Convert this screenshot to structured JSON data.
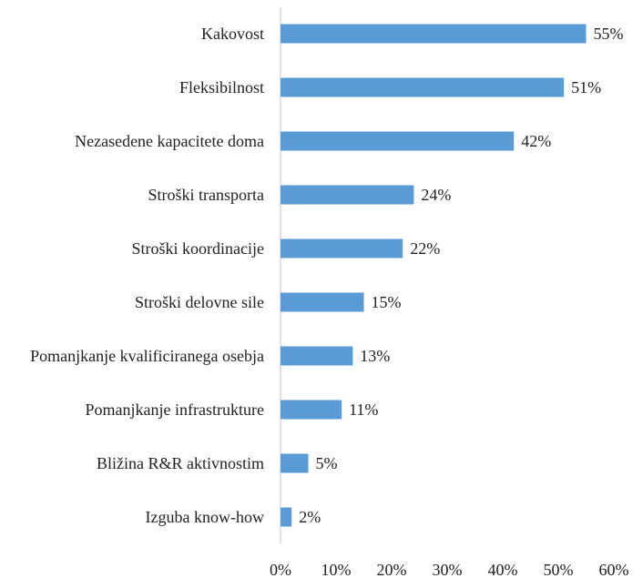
{
  "chart_data": {
    "type": "bar",
    "orientation": "horizontal",
    "categories": [
      "Kakovost",
      "Fleksibilnost",
      "Nezasedene kapacitete doma",
      "Stroški transporta",
      "Stroški koordinacije",
      "Stroški delovne sile",
      "Pomanjkanje kvalificiranega osebja",
      "Pomanjkanje infrastrukture",
      "Bližina R&R aktivnostim",
      "Izguba know-how"
    ],
    "values": [
      55,
      51,
      42,
      24,
      22,
      15,
      13,
      11,
      5,
      2
    ],
    "value_labels": [
      "55%",
      "51%",
      "42%",
      "24%",
      "22%",
      "15%",
      "13%",
      "11%",
      "5%",
      "2%"
    ],
    "color": "#5b9bd5",
    "xlim": [
      0,
      60
    ],
    "xticks": [
      {
        "value": 0,
        "label": "0%"
      },
      {
        "value": 10,
        "label": "10%"
      },
      {
        "value": 20,
        "label": "20%"
      },
      {
        "value": 30,
        "label": "30%"
      },
      {
        "value": 40,
        "label": "40%"
      },
      {
        "value": 50,
        "label": "50%"
      },
      {
        "value": 60,
        "label": "60%"
      }
    ],
    "grid": false
  }
}
